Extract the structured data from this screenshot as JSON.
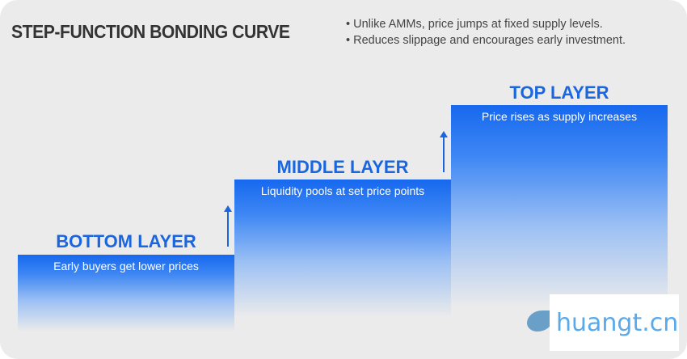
{
  "title": "STEP-FUNCTION BONDING CURVE",
  "bullets": [
    "• Unlike AMMs, price jumps at fixed supply levels.",
    "• Reduces slippage and encourages early investment."
  ],
  "layers": [
    {
      "label": "BOTTOM LAYER",
      "caption": "Early buyers get lower prices"
    },
    {
      "label": "MIDDLE LAYER",
      "caption": "Liquidity pools at set price points"
    },
    {
      "label": "TOP LAYER",
      "caption": "Price rises as supply increases"
    }
  ],
  "watermark": "huangt.cn",
  "colors": {
    "accent": "#1a66e0",
    "background": "#ebebeb"
  }
}
